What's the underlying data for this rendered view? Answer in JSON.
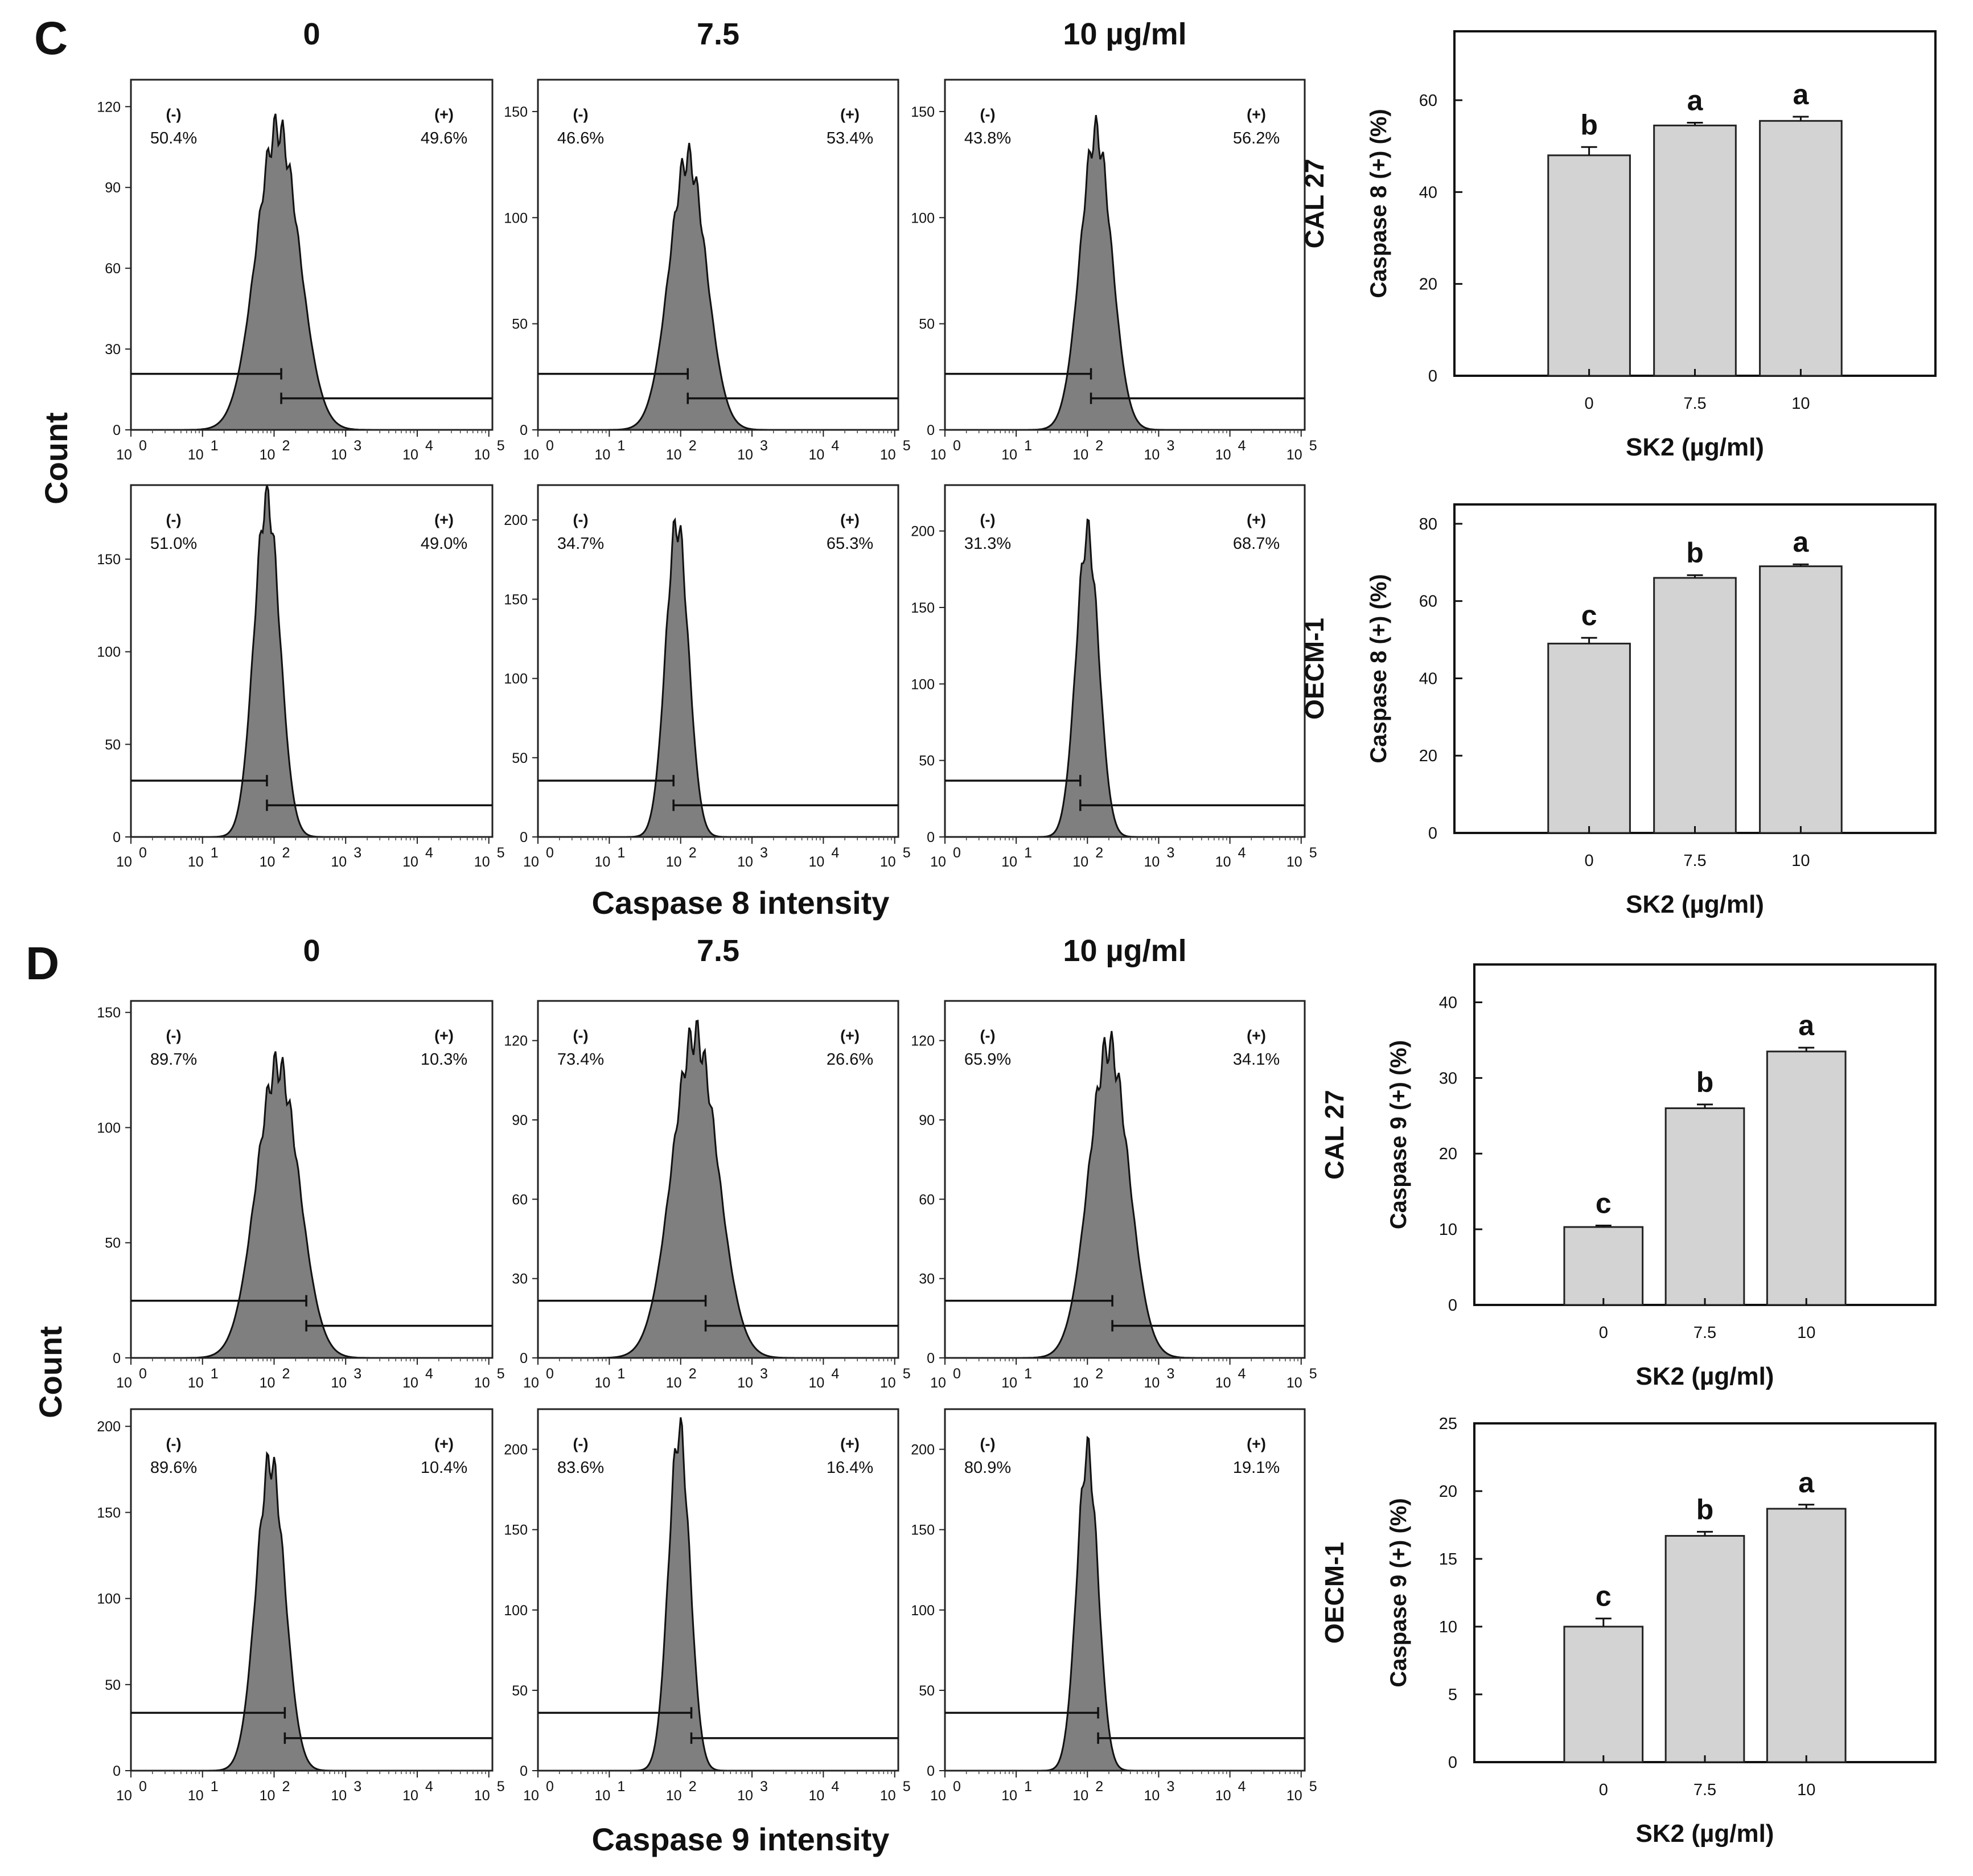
{
  "histogram_panels": [
    {
      "label": "C",
      "concentrations": [
        "0",
        "7.5",
        "10 µg/ml"
      ],
      "y_axis_label": "Count",
      "x_axis_label": "Caspase 8 intensity",
      "x_ticks": [
        "10",
        "10",
        "10",
        "10",
        "10",
        "10"
      ],
      "x_tick_exponents": [
        "0",
        "1",
        "2",
        "3",
        "4",
        "5"
      ],
      "rows": [
        {
          "hists": [
            {
              "neg_sign": "(-)",
              "pos_sign": "(+)",
              "neg_pct": "50.4%",
              "pos_pct": "49.6%",
              "yticks": [
                "0",
                "30",
                "60",
                "90",
                "120"
              ],
              "ymax": 130,
              "peak": 112,
              "center": 2.05,
              "width": 0.3,
              "gate": 2.1
            },
            {
              "neg_sign": "(-)",
              "pos_sign": "(+)",
              "neg_pct": "46.6%",
              "pos_pct": "53.4%",
              "yticks": [
                "0",
                "50",
                "100",
                "150"
              ],
              "ymax": 165,
              "peak": 128,
              "center": 2.1,
              "width": 0.26,
              "gate": 2.1
            },
            {
              "neg_sign": "(-)",
              "pos_sign": "(+)",
              "neg_pct": "43.8%",
              "pos_pct": "56.2%",
              "yticks": [
                "0",
                "50",
                "100",
                "150"
              ],
              "ymax": 165,
              "peak": 140,
              "center": 2.12,
              "width": 0.22,
              "gate": 2.05
            }
          ]
        },
        {
          "hists": [
            {
              "neg_sign": "(-)",
              "pos_sign": "(+)",
              "neg_pct": "51.0%",
              "pos_pct": "49.0%",
              "yticks": [
                "0",
                "50",
                "100",
                "150"
              ],
              "ymax": 190,
              "peak": 183,
              "center": 1.9,
              "width": 0.18,
              "gate": 1.9
            },
            {
              "neg_sign": "(-)",
              "pos_sign": "(+)",
              "neg_pct": "34.7%",
              "pos_pct": "65.3%",
              "yticks": [
                "0",
                "50",
                "100",
                "150",
                "200"
              ],
              "ymax": 222,
              "peak": 198,
              "center": 1.95,
              "width": 0.16,
              "gate": 1.9
            },
            {
              "neg_sign": "(-)",
              "pos_sign": "(+)",
              "neg_pct": "31.3%",
              "pos_pct": "68.7%",
              "yticks": [
                "0",
                "50",
                "100",
                "150",
                "200"
              ],
              "ymax": 230,
              "peak": 198,
              "center": 2.0,
              "width": 0.16,
              "gate": 1.9
            }
          ]
        }
      ],
      "bar_cells": [
        "CAL 27",
        "OECM-1"
      ]
    },
    {
      "label": "D",
      "concentrations": [
        "0",
        "7.5",
        "10 µg/ml"
      ],
      "y_axis_label": "Count",
      "x_axis_label": "Caspase 9 intensity",
      "x_ticks": [
        "10",
        "10",
        "10",
        "10",
        "10",
        "10"
      ],
      "x_tick_exponents": [
        "0",
        "1",
        "2",
        "3",
        "4",
        "5"
      ],
      "rows": [
        {
          "hists": [
            {
              "neg_sign": "(-)",
              "pos_sign": "(+)",
              "neg_pct": "89.7%",
              "pos_pct": "10.3%",
              "yticks": [
                "0",
                "50",
                "100",
                "150"
              ],
              "ymax": 155,
              "peak": 127,
              "center": 2.05,
              "width": 0.3,
              "gate": 2.45
            },
            {
              "neg_sign": "(-)",
              "pos_sign": "(+)",
              "neg_pct": "73.4%",
              "pos_pct": "26.6%",
              "yticks": [
                "0",
                "30",
                "60",
                "90",
                "120"
              ],
              "ymax": 135,
              "peak": 122,
              "center": 2.2,
              "width": 0.32,
              "gate": 2.35
            },
            {
              "neg_sign": "(-)",
              "pos_sign": "(+)",
              "neg_pct": "65.9%",
              "pos_pct": "34.1%",
              "yticks": [
                "0",
                "30",
                "60",
                "90",
                "120"
              ],
              "ymax": 135,
              "peak": 118,
              "center": 2.3,
              "width": 0.28,
              "gate": 2.35
            }
          ]
        },
        {
          "hists": [
            {
              "neg_sign": "(-)",
              "pos_sign": "(+)",
              "neg_pct": "89.6%",
              "pos_pct": "10.4%",
              "yticks": [
                "0",
                "50",
                "100",
                "150",
                "200"
              ],
              "ymax": 210,
              "peak": 180,
              "center": 1.95,
              "width": 0.2,
              "gate": 2.15
            },
            {
              "neg_sign": "(-)",
              "pos_sign": "(+)",
              "neg_pct": "83.6%",
              "pos_pct": "16.4%",
              "yticks": [
                "0",
                "50",
                "100",
                "150",
                "200"
              ],
              "ymax": 225,
              "peak": 212,
              "center": 1.98,
              "width": 0.15,
              "gate": 2.15
            },
            {
              "neg_sign": "(-)",
              "pos_sign": "(+)",
              "neg_pct": "80.9%",
              "pos_pct": "19.1%",
              "yticks": [
                "0",
                "50",
                "100",
                "150",
                "200"
              ],
              "ymax": 225,
              "peak": 198,
              "center": 2.0,
              "width": 0.15,
              "gate": 2.15
            }
          ]
        }
      ],
      "bar_cells": [
        "CAL 27",
        "OECM-1"
      ]
    }
  ],
  "chart_data": [
    {
      "type": "bar",
      "title": "",
      "cell_line": "CAL 27",
      "categories": [
        "0",
        "7.5",
        "10"
      ],
      "values": [
        48,
        54.5,
        55.5
      ],
      "errors": [
        1.8,
        0.6,
        0.9
      ],
      "significance": [
        "b",
        "a",
        "a"
      ],
      "ylabel": "Caspase 8 (+) (%)",
      "xlabel": "SK2 (µg/ml)",
      "ylim": [
        0,
        75
      ],
      "yticks": [
        "0",
        "20",
        "40",
        "60"
      ]
    },
    {
      "type": "bar",
      "title": "",
      "cell_line": "OECM-1",
      "categories": [
        "0",
        "7.5",
        "10"
      ],
      "values": [
        49,
        66,
        69
      ],
      "errors": [
        1.5,
        0.7,
        0.5
      ],
      "significance": [
        "c",
        "b",
        "a"
      ],
      "ylabel": "Caspase 8 (+) (%)",
      "xlabel": "SK2 (µg/ml)",
      "ylim": [
        0,
        85
      ],
      "yticks": [
        "0",
        "20",
        "40",
        "60",
        "80"
      ]
    },
    {
      "type": "bar",
      "title": "",
      "cell_line": "CAL 27",
      "categories": [
        "0",
        "7.5",
        "10"
      ],
      "values": [
        10.3,
        26,
        33.5
      ],
      "errors": [
        0.2,
        0.5,
        0.5
      ],
      "significance": [
        "c",
        "b",
        "a"
      ],
      "ylabel": "Caspase 9 (+) (%)",
      "xlabel": "SK2 (µg/ml)",
      "ylim": [
        0,
        45
      ],
      "yticks": [
        "0",
        "10",
        "20",
        "30",
        "40"
      ]
    },
    {
      "type": "bar",
      "title": "",
      "cell_line": "OECM-1",
      "categories": [
        "0",
        "7.5",
        "10"
      ],
      "values": [
        10,
        16.7,
        18.7
      ],
      "errors": [
        0.6,
        0.3,
        0.3
      ],
      "significance": [
        "c",
        "b",
        "a"
      ],
      "ylabel": "Caspase 9 (+) (%)",
      "xlabel": "SK2 (µg/ml)",
      "ylim": [
        0,
        25
      ],
      "yticks": [
        "0",
        "5",
        "10",
        "15",
        "20",
        "25"
      ]
    }
  ]
}
